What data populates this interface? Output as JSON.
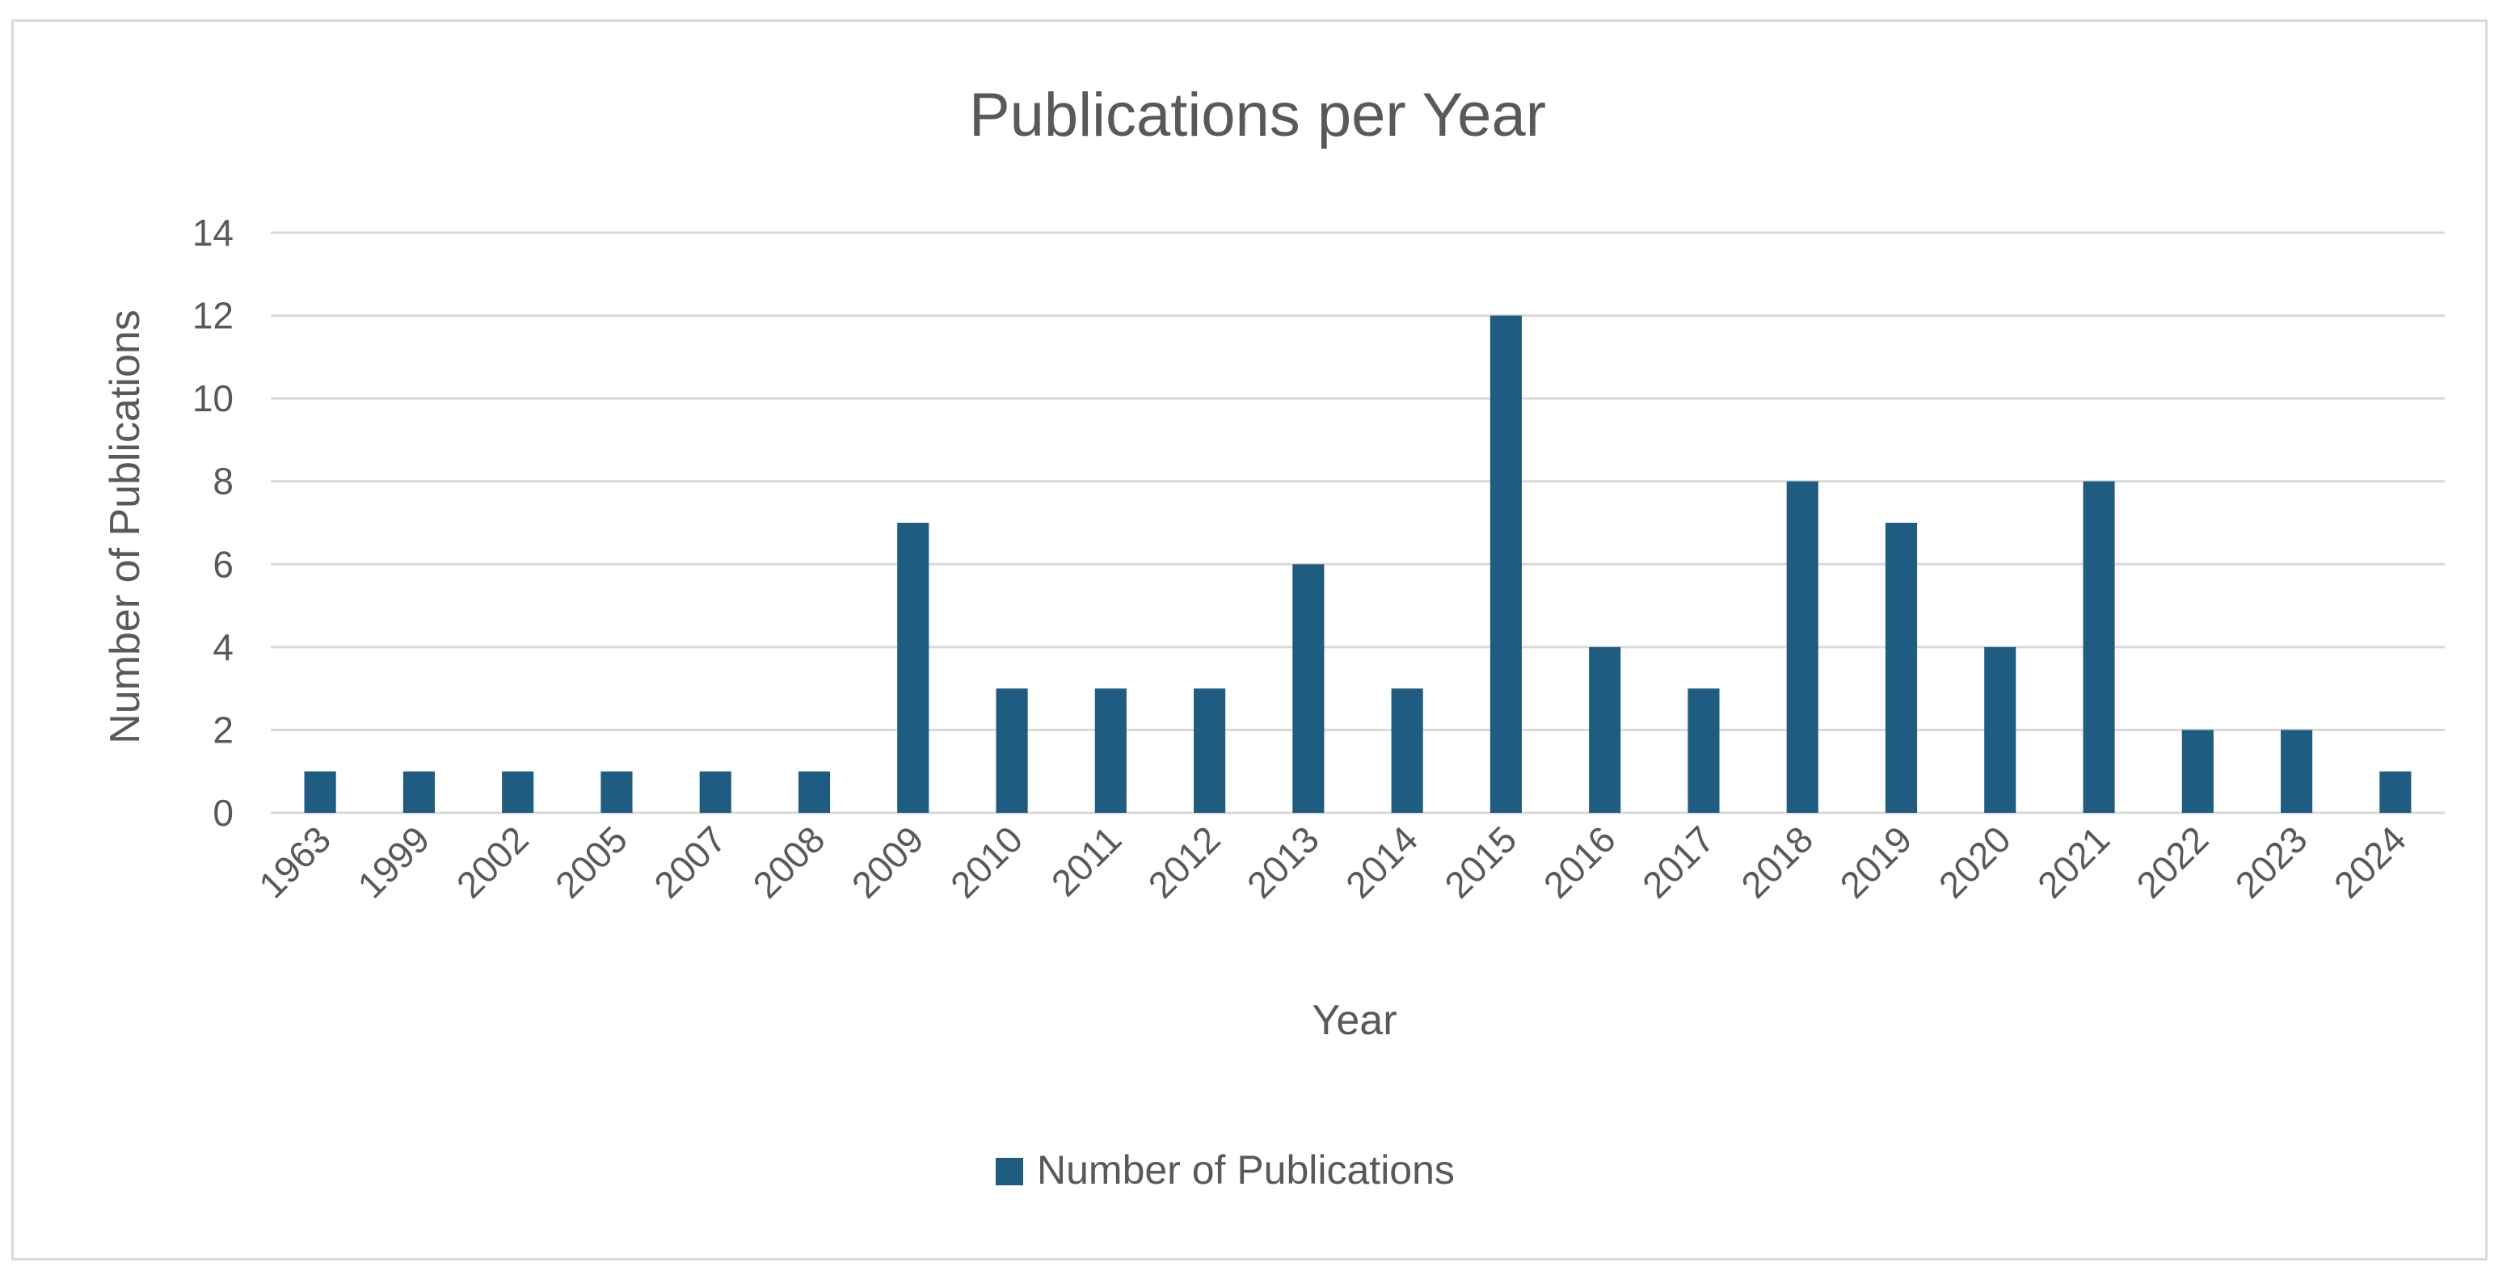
{
  "chart_data": {
    "type": "bar",
    "title": "Publications per Year",
    "xlabel": "Year",
    "ylabel": "Number of Publications",
    "ylim": [
      0,
      14
    ],
    "yticks": [
      0,
      2,
      4,
      6,
      8,
      10,
      12,
      14
    ],
    "grid": true,
    "legend_position": "bottom",
    "bar_color": "#1f5c82",
    "categories": [
      "1963",
      "1999",
      "2002",
      "2005",
      "2007",
      "2008",
      "2009",
      "2010",
      "2011",
      "2012",
      "2013",
      "2014",
      "2015",
      "2016",
      "2017",
      "2018",
      "2019",
      "2020",
      "2021",
      "2022",
      "2023",
      "2024"
    ],
    "series": [
      {
        "name": "Number of Publications",
        "values": [
          1,
          1,
          1,
          1,
          1,
          1,
          7,
          3,
          3,
          3,
          6,
          3,
          12,
          4,
          3,
          8,
          7,
          4,
          8,
          2,
          2,
          1
        ]
      }
    ]
  }
}
